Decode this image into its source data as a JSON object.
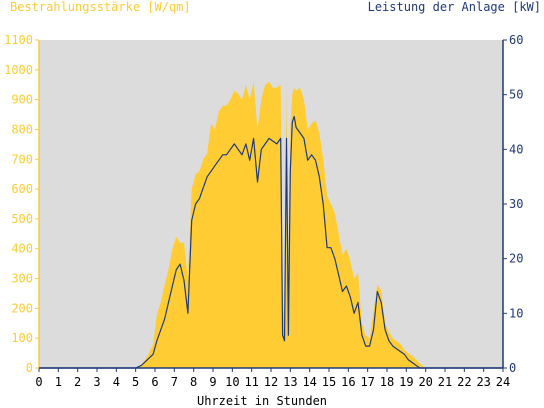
{
  "chart_data": {
    "type": "area",
    "left_axis_label": "Bestrahlungsstärke [W/qm]",
    "right_axis_label": "Leistung der Anlage [kW]",
    "xlabel": "Uhrzeit in Stunden",
    "xlim": [
      0,
      24
    ],
    "ylim_left": [
      0,
      1100
    ],
    "ylim_right": [
      0,
      60
    ],
    "x_ticks": [
      "0",
      "1",
      "2",
      "3",
      "4",
      "5",
      "6",
      "7",
      "8",
      "9",
      "10",
      "11",
      "12",
      "13",
      "14",
      "15",
      "16",
      "17",
      "18",
      "19",
      "20",
      "21",
      "22",
      "23",
      "24"
    ],
    "y_left_ticks": [
      "0",
      "100",
      "200",
      "300",
      "400",
      "500",
      "600",
      "700",
      "800",
      "900",
      "1000",
      "1100"
    ],
    "y_right_ticks": [
      "0",
      "10",
      "20",
      "30",
      "40",
      "50",
      "60"
    ],
    "colors": {
      "irradiance": "#ffcc33",
      "power": "#1f3a7a",
      "plot_bg": "#dcdcdc",
      "left_axis": "#ffcc33",
      "right_axis": "#1f3a7a"
    },
    "series": [
      {
        "axis": "left",
        "x": [
          0,
          5,
          5.3,
          5.6,
          5.9,
          6.1,
          6.3,
          6.5,
          6.7,
          6.9,
          7.1,
          7.3,
          7.5,
          7.7,
          7.9,
          8.1,
          8.3,
          8.5,
          8.7,
          8.9,
          9.1,
          9.3,
          9.5,
          9.7,
          9.9,
          10.1,
          10.3,
          10.5,
          10.7,
          10.9,
          11.1,
          11.3,
          11.5,
          11.7,
          11.9,
          12.1,
          12.3,
          12.5,
          12.6,
          12.7,
          12.8,
          12.9,
          13.0,
          13.1,
          13.2,
          13.3,
          13.5,
          13.7,
          13.9,
          14.1,
          14.3,
          14.5,
          14.7,
          14.9,
          15.1,
          15.3,
          15.5,
          15.7,
          15.9,
          16.1,
          16.3,
          16.5,
          16.7,
          16.9,
          17.1,
          17.3,
          17.5,
          17.7,
          17.9,
          18.1,
          18.3,
          18.5,
          18.7,
          18.9,
          19.1,
          19.3,
          19.5,
          19.7,
          19.9,
          20.0,
          20.2,
          24
        ],
        "y": [
          0,
          0,
          10,
          40,
          80,
          180,
          220,
          280,
          330,
          400,
          440,
          420,
          420,
          300,
          600,
          650,
          660,
          700,
          720,
          820,
          800,
          860,
          880,
          880,
          900,
          930,
          920,
          900,
          950,
          900,
          960,
          800,
          900,
          950,
          960,
          940,
          940,
          950,
          200,
          180,
          950,
          200,
          800,
          920,
          940,
          930,
          940,
          900,
          800,
          820,
          830,
          790,
          700,
          580,
          550,
          520,
          450,
          380,
          400,
          360,
          300,
          320,
          150,
          110,
          100,
          190,
          280,
          260,
          150,
          120,
          100,
          90,
          80,
          60,
          50,
          40,
          30,
          15,
          5,
          0,
          0,
          0
        ]
      },
      {
        "axis": "right",
        "x": [
          0,
          5,
          5.3,
          5.6,
          5.9,
          6.1,
          6.3,
          6.5,
          6.7,
          6.9,
          7.1,
          7.3,
          7.5,
          7.7,
          7.9,
          8.1,
          8.3,
          8.5,
          8.7,
          8.9,
          9.1,
          9.3,
          9.5,
          9.7,
          9.9,
          10.1,
          10.3,
          10.5,
          10.7,
          10.9,
          11.1,
          11.3,
          11.5,
          11.7,
          11.9,
          12.1,
          12.3,
          12.5,
          12.6,
          12.7,
          12.8,
          12.9,
          13.0,
          13.1,
          13.2,
          13.3,
          13.5,
          13.7,
          13.9,
          14.1,
          14.3,
          14.5,
          14.7,
          14.9,
          15.1,
          15.3,
          15.5,
          15.7,
          15.9,
          16.1,
          16.3,
          16.5,
          16.7,
          16.9,
          17.1,
          17.3,
          17.5,
          17.7,
          17.9,
          18.1,
          18.3,
          18.5,
          18.7,
          18.9,
          19.1,
          19.3,
          19.5,
          19.7,
          19.9,
          20.0,
          20.2,
          24
        ],
        "y": [
          0,
          0,
          0.5,
          1.5,
          2.5,
          5,
          7,
          9,
          12,
          15,
          18,
          19,
          16,
          10,
          27,
          30,
          31,
          33,
          35,
          36,
          37,
          38,
          39,
          39,
          40,
          41,
          40,
          39,
          41,
          38,
          42,
          34,
          40,
          41,
          42,
          41.5,
          41,
          42,
          6,
          5,
          42,
          6,
          36,
          45,
          46,
          44,
          43,
          42,
          38,
          39,
          38,
          35,
          30,
          22,
          22,
          20,
          17,
          14,
          15,
          13,
          10,
          12,
          6,
          4,
          4,
          7,
          14,
          12,
          7,
          5,
          4,
          3.5,
          3,
          2.5,
          1.5,
          1,
          0.5,
          0,
          0,
          0,
          0,
          0
        ]
      }
    ]
  }
}
